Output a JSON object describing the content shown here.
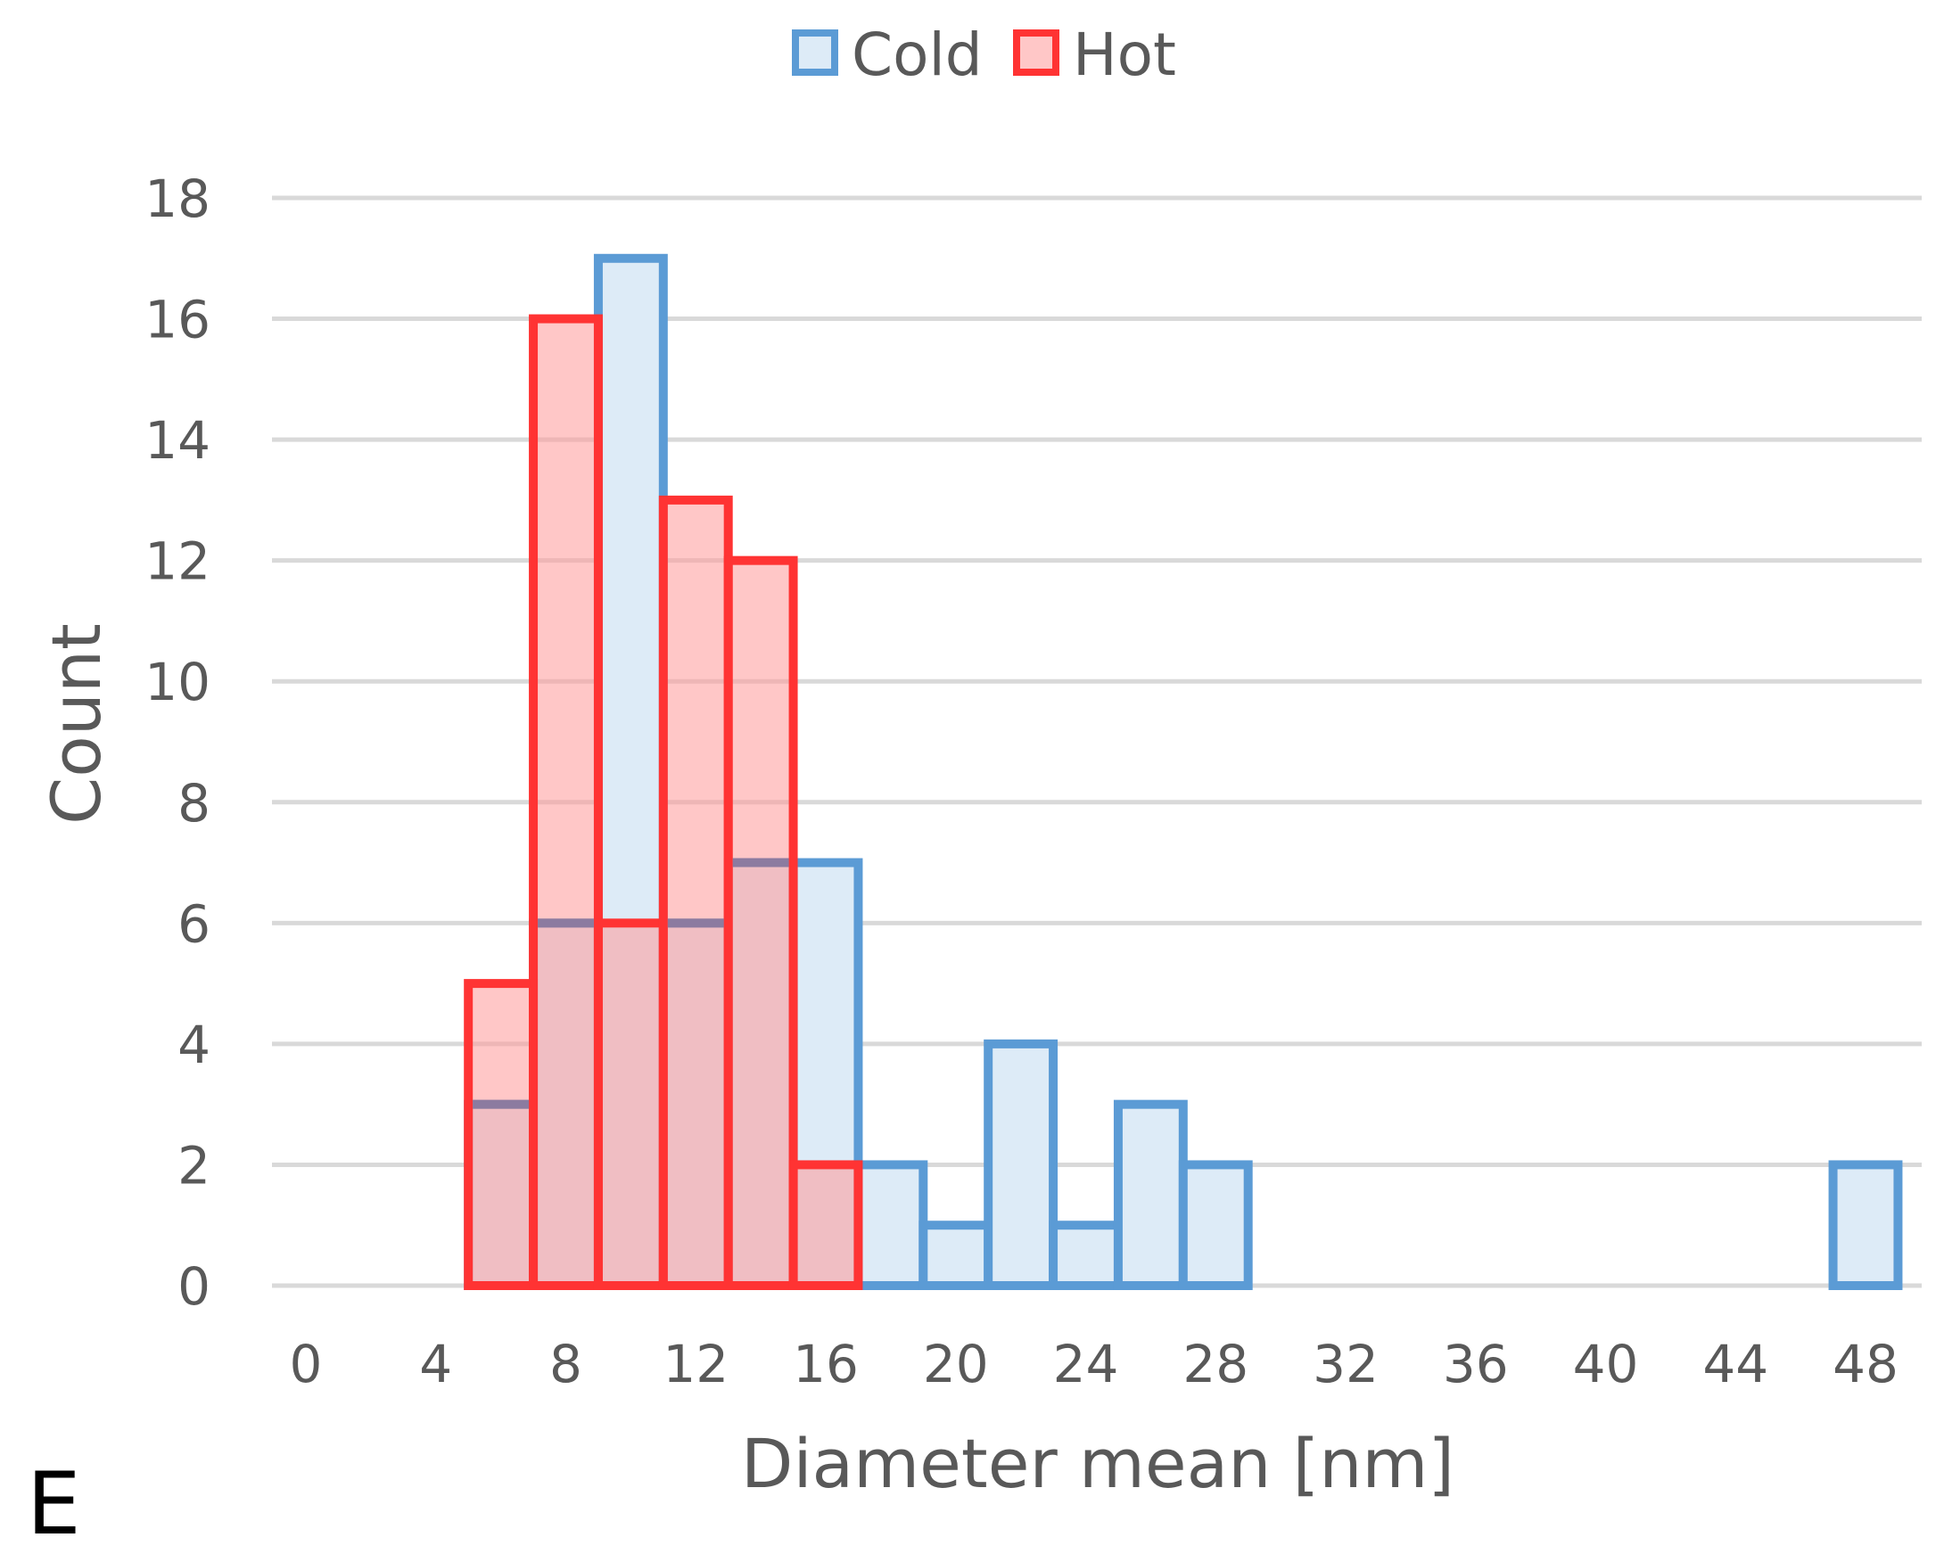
{
  "chart_data": {
    "type": "bar",
    "panel_label": "E",
    "xlabel": "Diameter mean [nm]",
    "ylabel": "Count",
    "xlim": [
      0,
      50
    ],
    "ylim": [
      0,
      18
    ],
    "x_ticks": [
      "0",
      "4",
      "8",
      "12",
      "16",
      "20",
      "24",
      "28",
      "32",
      "36",
      "40",
      "44",
      "48"
    ],
    "y_ticks": [
      "0",
      "2",
      "4",
      "6",
      "8",
      "10",
      "12",
      "14",
      "16",
      "18"
    ],
    "grid": "horizontal",
    "legend_position": "top-center",
    "bin_width": 2,
    "series": [
      {
        "name": "Cold",
        "color": "#5B9BD5",
        "fill": "#DDEBF7",
        "bins": [
          {
            "start": 5,
            "end": 7,
            "value": 3
          },
          {
            "start": 7,
            "end": 9,
            "value": 6
          },
          {
            "start": 9,
            "end": 11,
            "value": 17
          },
          {
            "start": 11,
            "end": 13,
            "value": 6
          },
          {
            "start": 13,
            "end": 15,
            "value": 7
          },
          {
            "start": 15,
            "end": 17,
            "value": 7
          },
          {
            "start": 17,
            "end": 19,
            "value": 2
          },
          {
            "start": 19,
            "end": 21,
            "value": 1
          },
          {
            "start": 21,
            "end": 23,
            "value": 4
          },
          {
            "start": 23,
            "end": 25,
            "value": 1
          },
          {
            "start": 25,
            "end": 27,
            "value": 3
          },
          {
            "start": 27,
            "end": 29,
            "value": 2
          },
          {
            "start": 47,
            "end": 49,
            "value": 2
          }
        ]
      },
      {
        "name": "Hot",
        "color": "#FF3333",
        "fill": "#FF9999",
        "bins": [
          {
            "start": 5,
            "end": 7,
            "value": 5
          },
          {
            "start": 7,
            "end": 9,
            "value": 16
          },
          {
            "start": 9,
            "end": 11,
            "value": 6
          },
          {
            "start": 11,
            "end": 13,
            "value": 13
          },
          {
            "start": 13,
            "end": 15,
            "value": 12
          },
          {
            "start": 15,
            "end": 17,
            "value": 2
          }
        ]
      }
    ]
  }
}
